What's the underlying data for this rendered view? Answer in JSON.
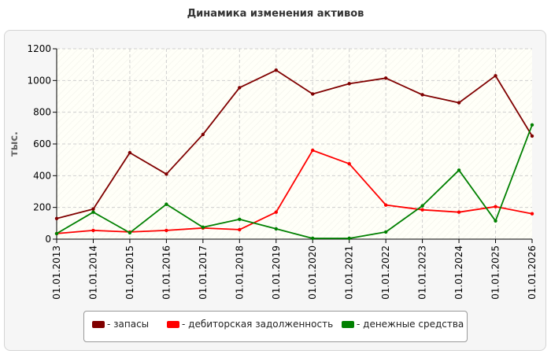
{
  "chart_data": {
    "type": "line",
    "title": "Динамика изменения активов",
    "ylabel": "тыс.",
    "xlabel": "",
    "ylim": [
      0,
      1200
    ],
    "yticks": [
      0,
      200,
      400,
      600,
      800,
      1000,
      1200
    ],
    "categories": [
      "01.01.2013",
      "01.01.2014",
      "01.01.2015",
      "01.01.2016",
      "01.01.2017",
      "01.01.2018",
      "01.01.2019",
      "01.01.2020",
      "01.01.2021",
      "01.01.2022",
      "01.01.2023",
      "01.01.2024",
      "01.01.2025",
      "01.01.2026"
    ],
    "grid": true,
    "legend_position": "bottom",
    "series": [
      {
        "name": "- запасы",
        "color": "#800000",
        "values": [
          130,
          190,
          545,
          410,
          660,
          955,
          1065,
          915,
          980,
          1015,
          910,
          860,
          1030,
          650
        ]
      },
      {
        "name": "- дебиторская задолженность",
        "color": "#ff0000",
        "values": [
          35,
          55,
          45,
          55,
          70,
          60,
          170,
          560,
          475,
          215,
          185,
          170,
          205,
          160
        ]
      },
      {
        "name": "- денежные средства",
        "color": "#008000",
        "values": [
          35,
          170,
          40,
          220,
          75,
          125,
          65,
          5,
          5,
          45,
          210,
          435,
          115,
          720
        ]
      }
    ]
  }
}
